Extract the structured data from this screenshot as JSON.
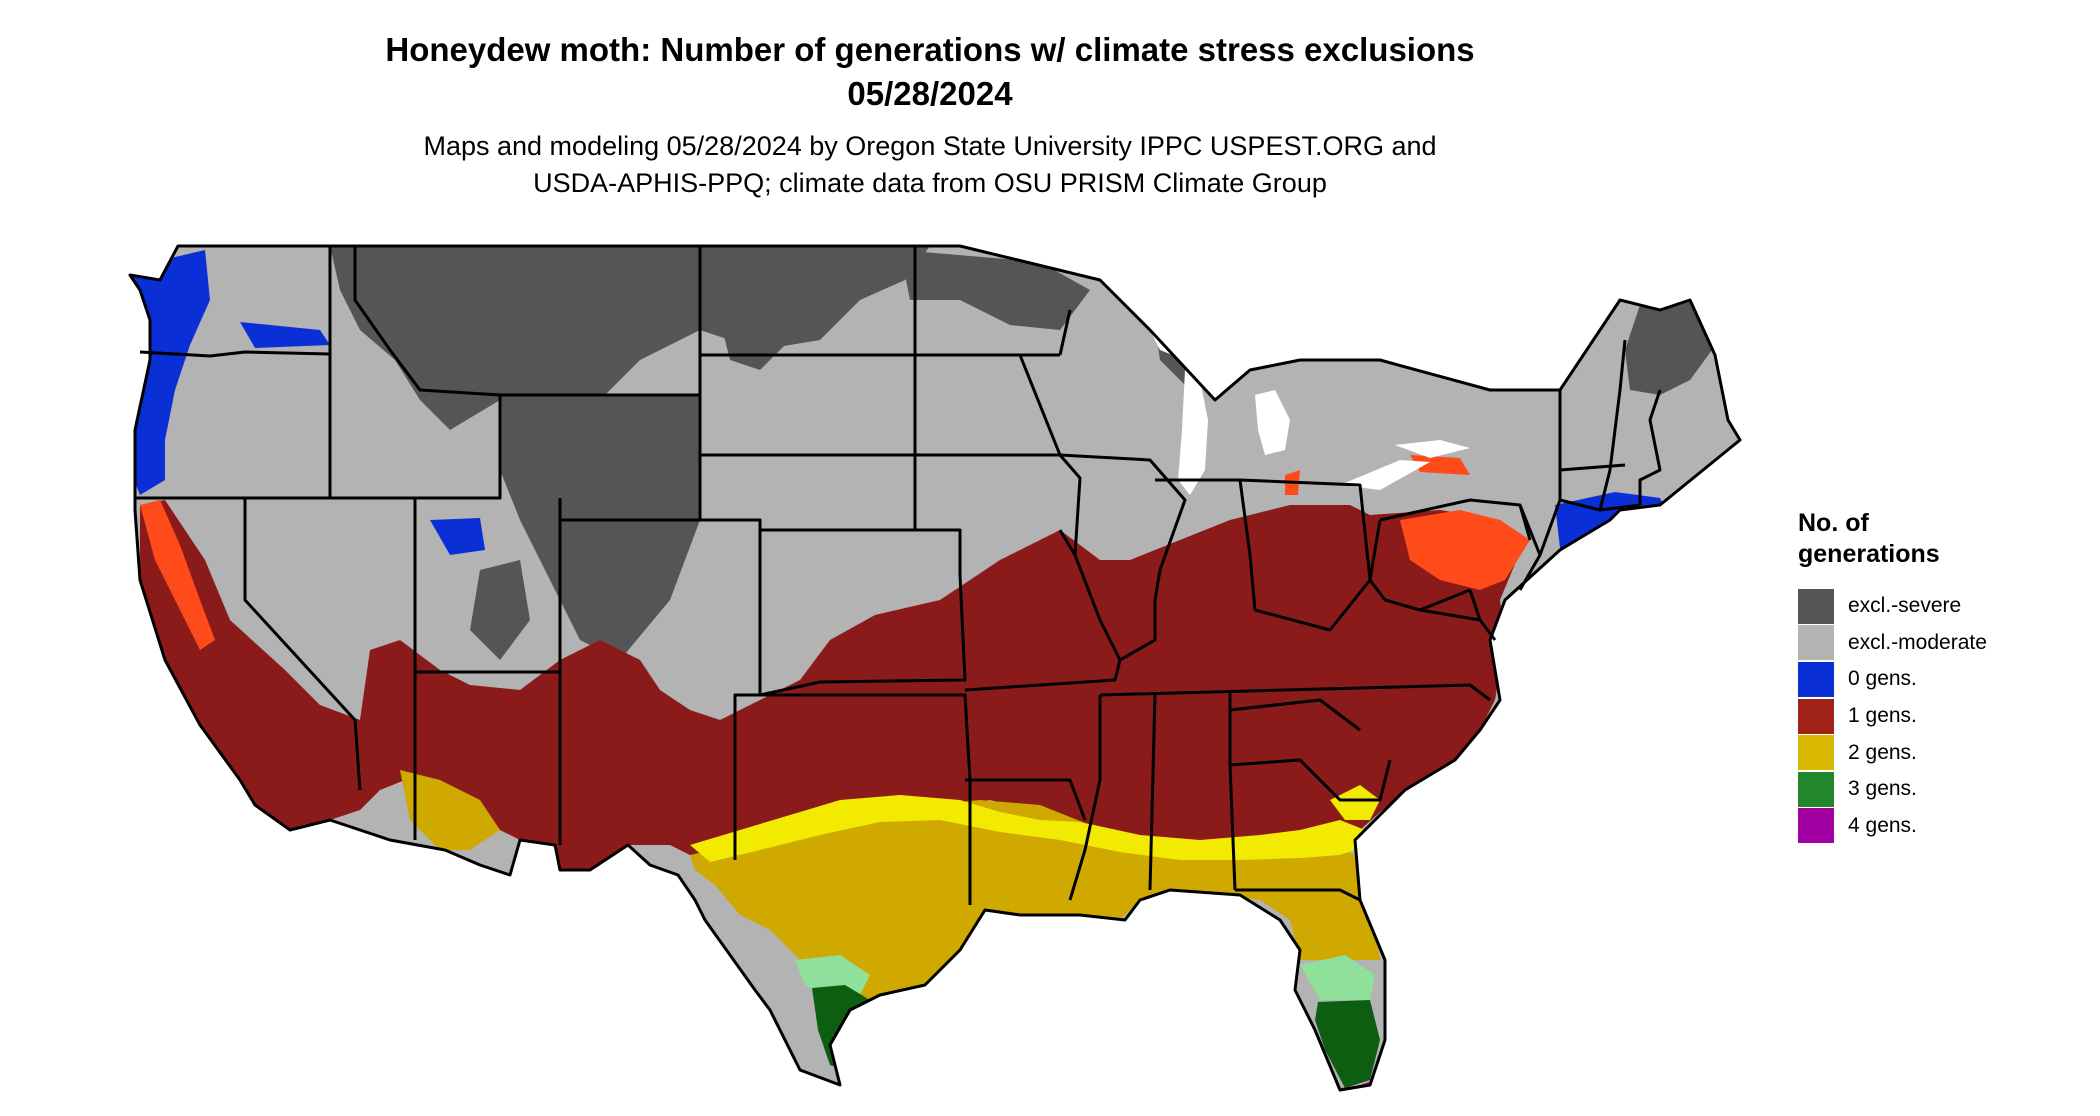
{
  "title": {
    "line1": "Honeydew moth: Number of generations w/ climate stress exclusions",
    "line2": "05/28/2024"
  },
  "subtitle": {
    "line1": "Maps and modeling 05/28/2024 by Oregon State University IPPC USPEST.ORG and",
    "line2": "USDA-APHIS-PPQ; climate data from OSU PRISM Climate Group"
  },
  "legend": {
    "title_line1": "No. of",
    "title_line2": "generations",
    "items": [
      {
        "label": "excl.-severe",
        "color": "#555555"
      },
      {
        "label": "excl.-moderate",
        "color": "#b3b3b3"
      },
      {
        "label": "0 gens.",
        "color": "#0a2fd6"
      },
      {
        "label": "1 gens.",
        "color": "#a02318"
      },
      {
        "label": "2 gens.",
        "color": "#d9b800"
      },
      {
        "label": "3 gens.",
        "color": "#22862a"
      },
      {
        "label": "4 gens.",
        "color": "#a300a3"
      }
    ]
  },
  "map_colors": {
    "excl_severe": "#555555",
    "excl_moderate": "#b3b3b3",
    "gens_0": "#0a2fd6",
    "gens_1": "#8b1a1a",
    "gens_1_edge": "#ff4a1a",
    "gens_2": "#cfa800",
    "gens_2_edge": "#f2ea00",
    "gens_3": "#0e5e12",
    "gens_3_edge": "#8fe09a",
    "gens_4": "#c000c0"
  }
}
